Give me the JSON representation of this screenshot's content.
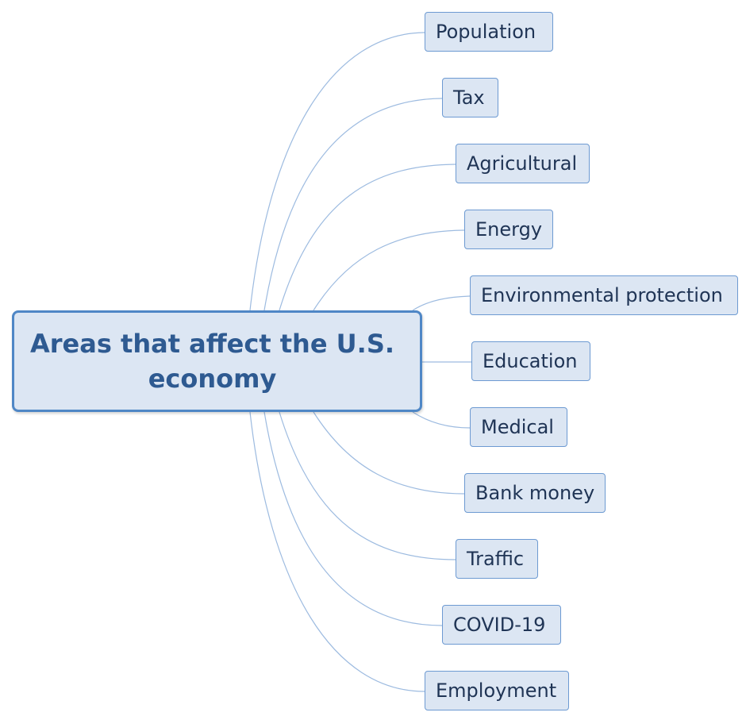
{
  "diagram": {
    "central_topic": "Areas that affect the U.S. economy",
    "branches": [
      "Population",
      "Tax",
      "Agricultural",
      "Energy",
      "Environmental protection",
      "Education",
      "Medical",
      "Bank money",
      "Traffic",
      "COVID-19",
      "Employment"
    ],
    "colors": {
      "node_fill": "#dce6f3",
      "central_border": "#4f87c6",
      "branch_border": "#6d9ad2",
      "central_text": "#2e5a91",
      "branch_text": "#1f3455",
      "connector": "#9dbbe0"
    }
  }
}
